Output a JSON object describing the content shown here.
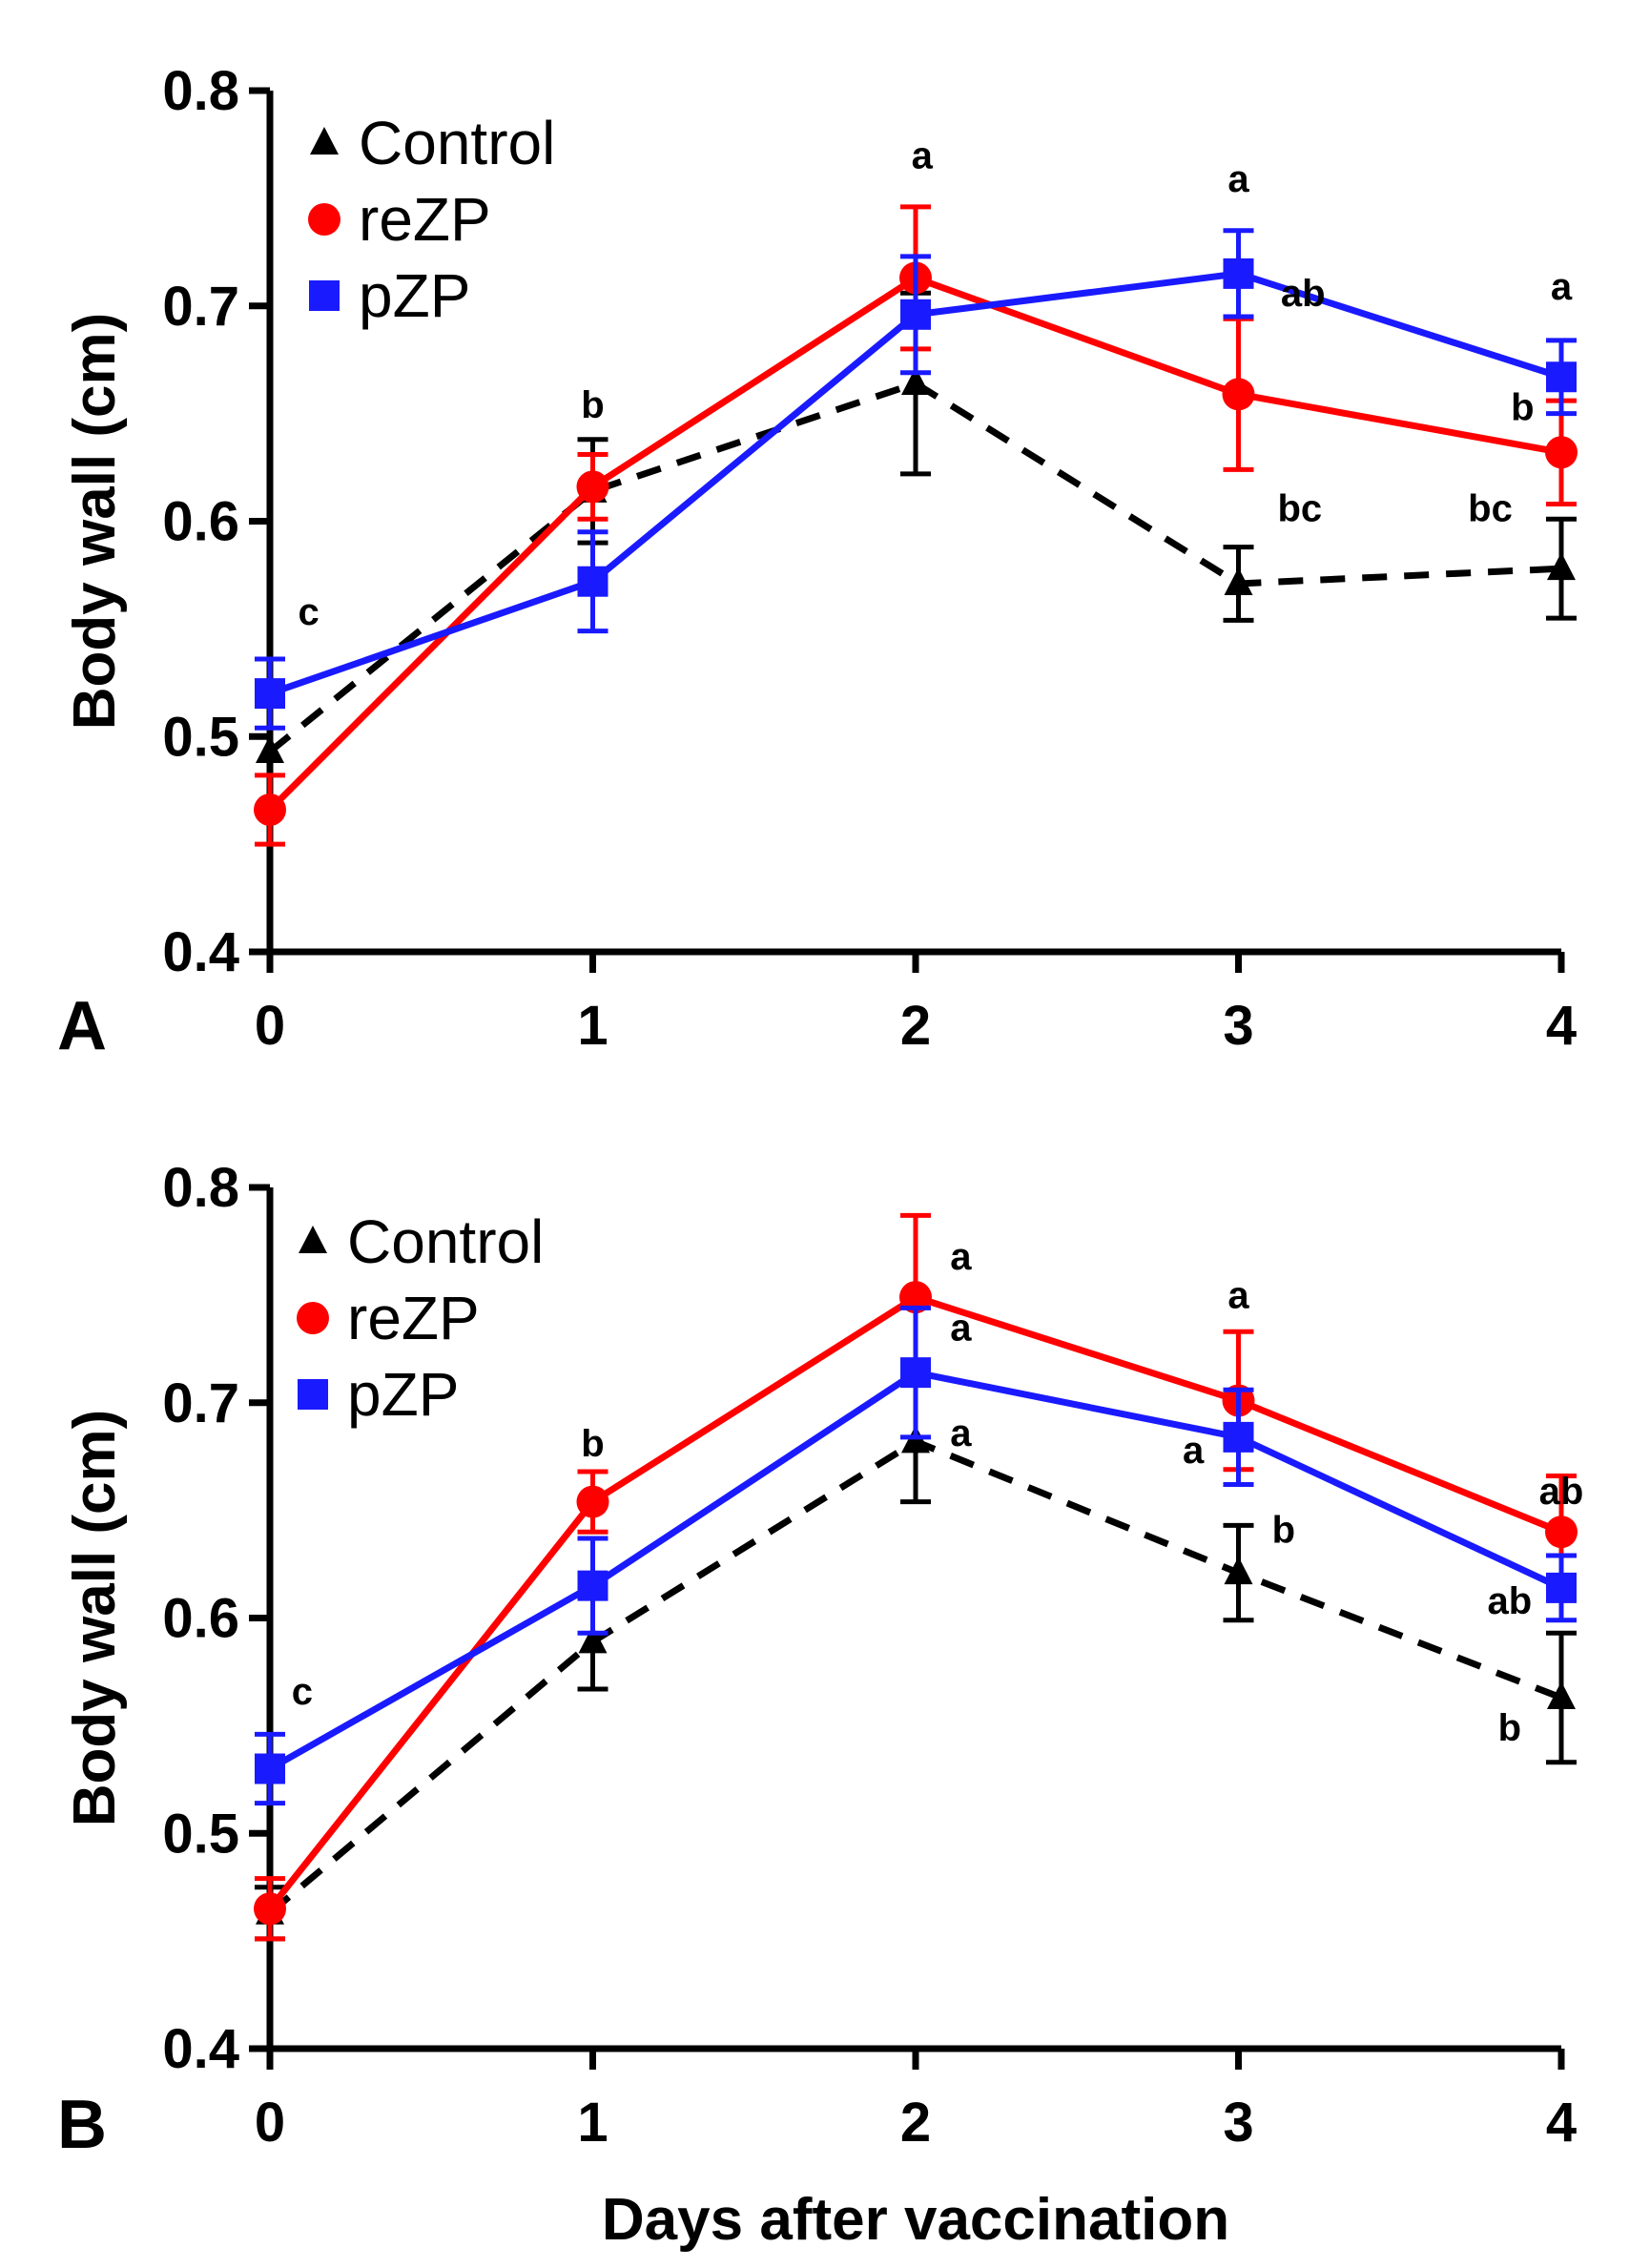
{
  "chart_data": [
    {
      "type": "line",
      "panel_label": "A",
      "x": [
        0,
        1,
        2,
        3,
        4
      ],
      "xticks": [
        "0",
        "1",
        "2",
        "3",
        "4"
      ],
      "ylabel": "Body wall (cm)",
      "ylim": [
        0.4,
        0.8
      ],
      "yticks": [
        "0.4",
        "0.5",
        "0.6",
        "0.7",
        "0.8"
      ],
      "series": [
        {
          "name": "Control",
          "color": "#000000",
          "marker": "triangle",
          "dashed": true,
          "values": [
            0.493,
            0.614,
            0.664,
            0.571,
            0.578
          ],
          "errors": [
            0.0,
            0.024,
            0.042,
            0.017,
            0.023
          ]
        },
        {
          "name": "reZP",
          "color": "#ff0000",
          "marker": "circle",
          "dashed": false,
          "values": [
            0.466,
            0.616,
            0.713,
            0.659,
            0.632
          ],
          "errors": [
            0.016,
            0.015,
            0.033,
            0.035,
            0.024
          ]
        },
        {
          "name": "pZP",
          "color": "#1a1aff",
          "marker": "square",
          "dashed": false,
          "values": [
            0.52,
            0.572,
            0.696,
            0.715,
            0.667
          ],
          "errors": [
            0.016,
            0.023,
            0.027,
            0.02,
            0.017
          ]
        }
      ],
      "annotations": [
        {
          "text": "c",
          "x": 0.12,
          "y": 0.552
        },
        {
          "text": "b",
          "x": 1.0,
          "y": 0.648
        },
        {
          "text": "a",
          "x": 2.02,
          "y": 0.764
        },
        {
          "text": "a",
          "x": 3.0,
          "y": 0.753
        },
        {
          "text": "ab",
          "x": 3.2,
          "y": 0.7
        },
        {
          "text": "bc",
          "x": 3.19,
          "y": 0.6
        },
        {
          "text": "a",
          "x": 4.0,
          "y": 0.703
        },
        {
          "text": "b",
          "x": 3.88,
          "y": 0.647
        },
        {
          "text": "bc",
          "x": 3.78,
          "y": 0.6
        }
      ]
    },
    {
      "type": "line",
      "panel_label": "B",
      "x": [
        0,
        1,
        2,
        3,
        4
      ],
      "xticks": [
        "0",
        "1",
        "2",
        "3",
        "4"
      ],
      "xlabel": "Days after vaccination",
      "ylabel": "Body wall (cm)",
      "ylim": [
        0.4,
        0.8
      ],
      "yticks": [
        "0.4",
        "0.5",
        "0.6",
        "0.7",
        "0.8"
      ],
      "series": [
        {
          "name": "Control",
          "color": "#000000",
          "marker": "triangle",
          "dashed": true,
          "values": [
            0.463,
            0.589,
            0.682,
            0.621,
            0.563
          ],
          "errors": [
            0.012,
            0.022,
            0.028,
            0.022,
            0.03
          ]
        },
        {
          "name": "reZP",
          "color": "#ff0000",
          "marker": "circle",
          "dashed": false,
          "values": [
            0.465,
            0.654,
            0.749,
            0.701,
            0.64
          ],
          "errors": [
            0.014,
            0.014,
            0.038,
            0.032,
            0.026
          ]
        },
        {
          "name": "pZP",
          "color": "#1a1aff",
          "marker": "square",
          "dashed": false,
          "values": [
            0.53,
            0.615,
            0.714,
            0.684,
            0.614
          ],
          "errors": [
            0.016,
            0.022,
            0.03,
            0.022,
            0.015
          ]
        }
      ],
      "annotations": [
        {
          "text": "c",
          "x": 0.1,
          "y": 0.56
        },
        {
          "text": "b",
          "x": 1.0,
          "y": 0.675
        },
        {
          "text": "a",
          "x": 2.14,
          "y": 0.762
        },
        {
          "text": "a",
          "x": 2.14,
          "y": 0.729
        },
        {
          "text": "a",
          "x": 2.14,
          "y": 0.68
        },
        {
          "text": "a",
          "x": 3.0,
          "y": 0.744
        },
        {
          "text": "a",
          "x": 2.86,
          "y": 0.672
        },
        {
          "text": "b",
          "x": 3.14,
          "y": 0.635
        },
        {
          "text": "ab",
          "x": 4.0,
          "y": 0.653
        },
        {
          "text": "ab",
          "x": 3.84,
          "y": 0.602
        },
        {
          "text": "b",
          "x": 3.84,
          "y": 0.543
        }
      ]
    }
  ]
}
